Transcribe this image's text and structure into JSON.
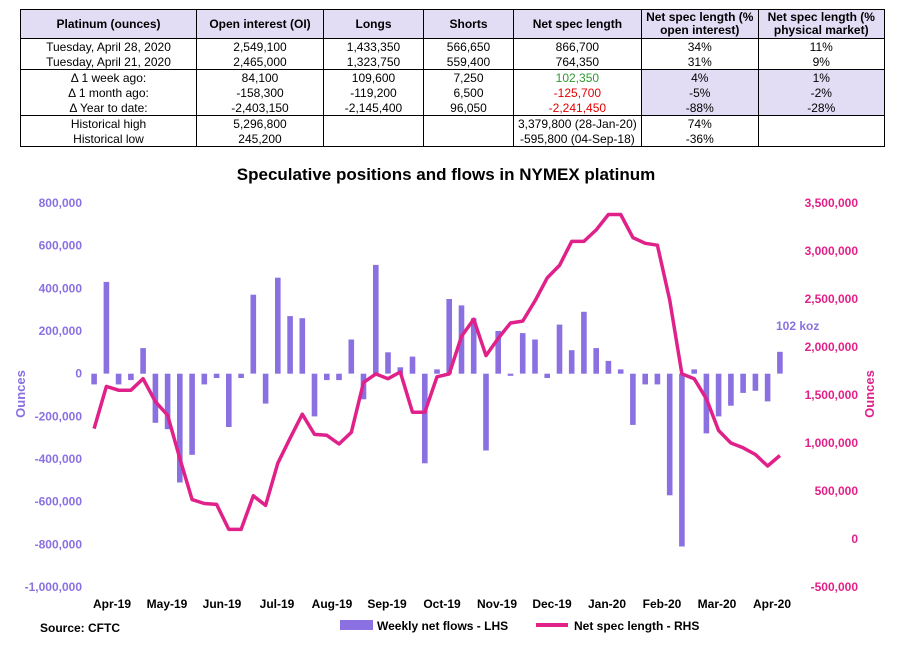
{
  "table": {
    "headers": [
      "Platinum (ounces)",
      "Open interest (OI)",
      "Longs",
      "Shorts",
      "Net spec length",
      "Net spec length (% open interest)",
      "Net spec length (% physical market)"
    ],
    "rows": [
      [
        "Tuesday, April 28, 2020",
        "2,549,100",
        "1,433,350",
        "566,650",
        "866,700",
        "34%",
        "11%"
      ],
      [
        "Tuesday, April 21, 2020",
        "2,465,000",
        "1,323,750",
        "559,400",
        "764,350",
        "31%",
        "9%"
      ],
      [
        "Δ 1 week ago:",
        "84,100",
        "109,600",
        "7,250",
        "102,350",
        "4%",
        "1%"
      ],
      [
        "Δ 1 month ago:",
        "-158,300",
        "-119,200",
        "6,500",
        "-125,700",
        "-5%",
        "-2%"
      ],
      [
        "Δ Year to date:",
        "-2,403,150",
        "-2,145,400",
        "96,050",
        "-2,241,450",
        "-88%",
        "-28%"
      ],
      [
        "Historical high",
        "5,296,800",
        "",
        "",
        "3,379,800  (28-Jan-20)",
        "74%",
        ""
      ],
      [
        "Historical low",
        "245,200",
        "",
        "",
        "-595,800  (04-Sep-18)",
        "-36%",
        ""
      ]
    ]
  },
  "chart_data": {
    "type": "bar+line",
    "title": "Speculative positions and flows in NYMEX platinum",
    "ylabel_left": "Ounces",
    "ylabel_right": "Ounces",
    "ylim_left": [
      -1000000,
      800000
    ],
    "ylim_right": [
      -500000,
      3500000
    ],
    "yticks_left": [
      "800,000",
      "600,000",
      "400,000",
      "200,000",
      "0",
      "-200,000",
      "-400,000",
      "-600,000",
      "-800,000",
      "-1,000,000"
    ],
    "yticks_right": [
      "3,500,000",
      "3,000,000",
      "2,500,000",
      "2,000,000",
      "1,500,000",
      "1,000,000",
      "500,000",
      "0",
      "-500,000"
    ],
    "x_labels": [
      "Apr-19",
      "May-19",
      "Jun-19",
      "Jul-19",
      "Aug-19",
      "Sep-19",
      "Oct-19",
      "Nov-19",
      "Dec-19",
      "Jan-20",
      "Feb-20",
      "Mar-20",
      "Apr-20"
    ],
    "annotation": "102 koz",
    "legend": [
      "Weekly net flows - LHS",
      "Net spec length - RHS"
    ],
    "source": "Source: CFTC",
    "colors": {
      "bars": "#8a70e0",
      "line": "#e0218a"
    },
    "series": [
      {
        "name": "Weekly net flows - LHS",
        "axis": "left",
        "values": [
          -50000,
          430000,
          -50000,
          -30000,
          120000,
          -230000,
          -260000,
          -510000,
          -380000,
          -50000,
          -20000,
          -250000,
          -20000,
          370000,
          -140000,
          450000,
          270000,
          260000,
          -200000,
          -30000,
          -30000,
          160000,
          -120000,
          510000,
          100000,
          30000,
          80000,
          -420000,
          20000,
          350000,
          320000,
          260000,
          -360000,
          200000,
          -10000,
          190000,
          160000,
          -20000,
          230000,
          110000,
          290000,
          120000,
          60000,
          20000,
          -240000,
          -50000,
          -50000,
          -570000,
          -810000,
          20000,
          -280000,
          -200000,
          -150000,
          -90000,
          -80000,
          -130000,
          102350
        ]
      },
      {
        "name": "Net spec length - RHS",
        "axis": "right",
        "values": [
          1150000,
          1590000,
          1550000,
          1550000,
          1670000,
          1430000,
          1290000,
          840000,
          410000,
          370000,
          360000,
          100000,
          100000,
          450000,
          350000,
          790000,
          1050000,
          1300000,
          1090000,
          1080000,
          990000,
          1110000,
          1630000,
          1720000,
          1670000,
          1740000,
          1320000,
          1320000,
          1690000,
          1720000,
          2110000,
          2290000,
          1910000,
          2090000,
          2250000,
          2270000,
          2480000,
          2720000,
          2850000,
          3100000,
          3100000,
          3220000,
          3380000,
          3380000,
          3140000,
          3080000,
          3060000,
          2490000,
          1720000,
          1670000,
          1460000,
          1130000,
          1000000,
          950000,
          880000,
          760000,
          870000
        ]
      }
    ]
  }
}
